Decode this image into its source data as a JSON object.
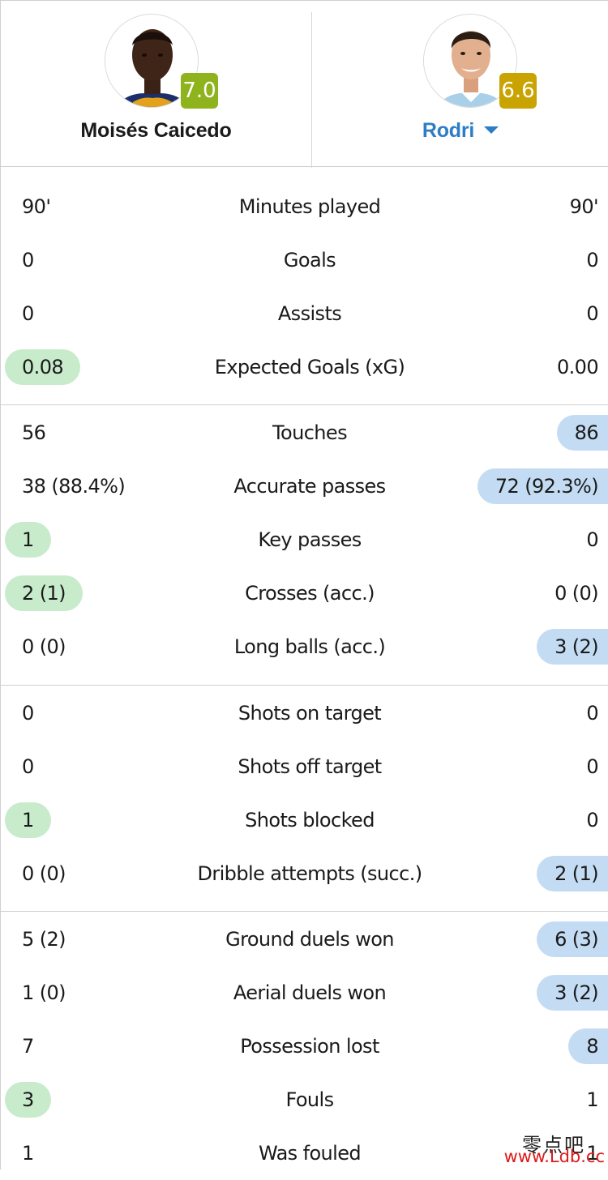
{
  "players": {
    "left": {
      "name": "Moisés Caicedo",
      "rating": "7.0",
      "rating_color": "#8fb31d",
      "avatar_icon": "player-photo"
    },
    "right": {
      "name": "Rodri",
      "rating": "6.6",
      "rating_color": "#c9a400",
      "avatar_icon": "player-photo",
      "dropdown_icon": "caret-down-icon"
    }
  },
  "colors": {
    "left_highlight": "#c8ebcc",
    "right_highlight": "#c4dcf3",
    "right_name": "#2d7dc6"
  },
  "sections": [
    {
      "rows": [
        {
          "label": "Minutes played",
          "left": "90'",
          "right": "90'",
          "highlight": "none"
        },
        {
          "label": "Goals",
          "left": "0",
          "right": "0",
          "highlight": "none"
        },
        {
          "label": "Assists",
          "left": "0",
          "right": "0",
          "highlight": "none"
        },
        {
          "label": "Expected Goals (xG)",
          "left": "0.08",
          "right": "0.00",
          "highlight": "left"
        }
      ]
    },
    {
      "rows": [
        {
          "label": "Touches",
          "left": "56",
          "right": "86",
          "highlight": "right"
        },
        {
          "label": "Accurate passes",
          "left": "38 (88.4%)",
          "right": "72 (92.3%)",
          "highlight": "right"
        },
        {
          "label": "Key passes",
          "left": "1",
          "right": "0",
          "highlight": "left"
        },
        {
          "label": "Crosses (acc.)",
          "left": "2 (1)",
          "right": "0 (0)",
          "highlight": "left"
        },
        {
          "label": "Long balls (acc.)",
          "left": "0 (0)",
          "right": "3 (2)",
          "highlight": "right"
        }
      ]
    },
    {
      "rows": [
        {
          "label": "Shots on target",
          "left": "0",
          "right": "0",
          "highlight": "none"
        },
        {
          "label": "Shots off target",
          "left": "0",
          "right": "0",
          "highlight": "none"
        },
        {
          "label": "Shots blocked",
          "left": "1",
          "right": "0",
          "highlight": "left"
        },
        {
          "label": "Dribble attempts (succ.)",
          "left": "0 (0)",
          "right": "2 (1)",
          "highlight": "right"
        }
      ]
    },
    {
      "rows": [
        {
          "label": "Ground duels won",
          "left": "5 (2)",
          "right": "6 (3)",
          "highlight": "right"
        },
        {
          "label": "Aerial duels won",
          "left": "1 (0)",
          "right": "3 (2)",
          "highlight": "right"
        },
        {
          "label": "Possession lost",
          "left": "7",
          "right": "8",
          "highlight": "right"
        },
        {
          "label": "Fouls",
          "left": "3",
          "right": "1",
          "highlight": "left"
        },
        {
          "label": "Was fouled",
          "left": "1",
          "right": "1",
          "highlight": "none"
        }
      ]
    }
  ],
  "watermark": {
    "cn": "零点吧",
    "url": "www.Ldb.cc"
  }
}
